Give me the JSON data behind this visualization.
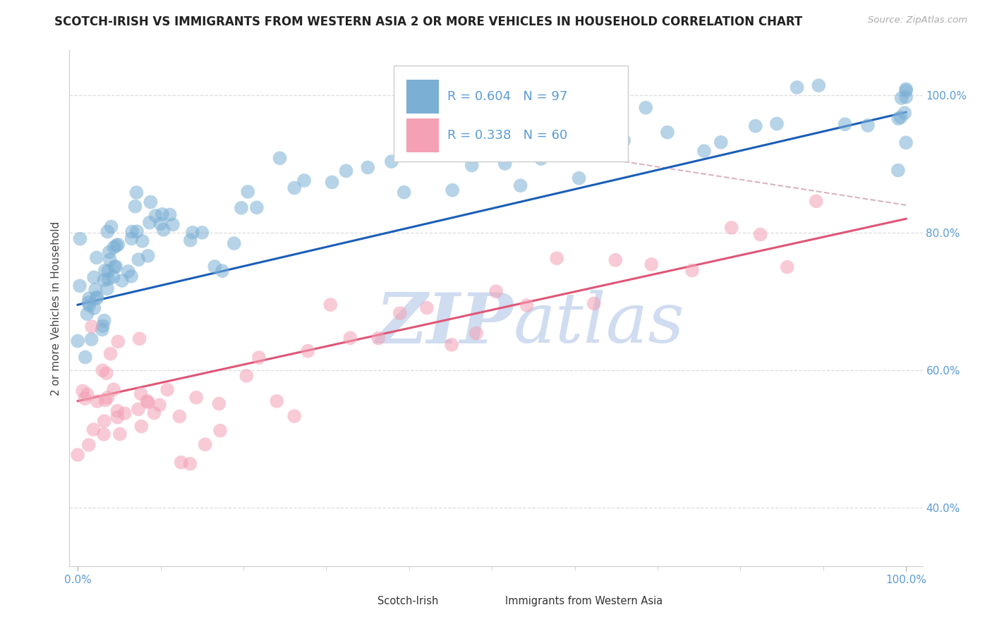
{
  "title": "SCOTCH-IRISH VS IMMIGRANTS FROM WESTERN ASIA 2 OR MORE VEHICLES IN HOUSEHOLD CORRELATION CHART",
  "source_text": "Source: ZipAtlas.com",
  "ylabel": "2 or more Vehicles in Household",
  "R_blue": 0.604,
  "N_blue": 97,
  "R_pink": 0.338,
  "N_pink": 60,
  "blue_color": "#7BAFD4",
  "pink_color": "#F4A0B5",
  "blue_line_color": "#1A5EB8",
  "pink_line_color": "#E05577",
  "dashed_line_color": "#E8A0B0",
  "grid_color": "#DDDDDD",
  "tick_color": "#5B9BD5",
  "legend_blue_label": "Scotch-Irish",
  "legend_pink_label": "Immigrants from Western Asia",
  "watermark_color": "#D0DCF0",
  "blue_line_y0": 0.695,
  "blue_line_y1": 0.975,
  "pink_line_y0": 0.555,
  "pink_line_y1": 0.82,
  "dashed_line_y0": 0.975,
  "dashed_line_y1": 0.84,
  "xlim": [
    -0.01,
    1.02
  ],
  "ylim": [
    0.315,
    1.065
  ],
  "yticks": [
    0.4,
    0.6,
    0.8,
    1.0
  ],
  "ytick_labels": [
    "40.0%",
    "60.0%",
    "80.0%",
    "100.0%"
  ],
  "blue_x": [
    0.005,
    0.008,
    0.01,
    0.01,
    0.012,
    0.013,
    0.015,
    0.016,
    0.017,
    0.018,
    0.02,
    0.02,
    0.022,
    0.023,
    0.025,
    0.025,
    0.026,
    0.028,
    0.028,
    0.03,
    0.032,
    0.033,
    0.035,
    0.037,
    0.038,
    0.04,
    0.042,
    0.043,
    0.045,
    0.048,
    0.05,
    0.052,
    0.055,
    0.057,
    0.06,
    0.062,
    0.065,
    0.068,
    0.07,
    0.072,
    0.075,
    0.078,
    0.08,
    0.082,
    0.085,
    0.088,
    0.09,
    0.092,
    0.095,
    0.1,
    0.11,
    0.12,
    0.13,
    0.14,
    0.15,
    0.16,
    0.17,
    0.18,
    0.19,
    0.2,
    0.22,
    0.24,
    0.26,
    0.28,
    0.3,
    0.32,
    0.35,
    0.38,
    0.4,
    0.42,
    0.45,
    0.48,
    0.51,
    0.54,
    0.57,
    0.6,
    0.63,
    0.66,
    0.69,
    0.72,
    0.75,
    0.78,
    0.81,
    0.84,
    0.87,
    0.9,
    0.93,
    0.96,
    0.98,
    0.99,
    0.995,
    1.0,
    1.0,
    1.0,
    1.0,
    1.0,
    1.0
  ],
  "blue_y": [
    0.69,
    0.685,
    0.695,
    0.7,
    0.688,
    0.692,
    0.7,
    0.695,
    0.705,
    0.698,
    0.71,
    0.72,
    0.715,
    0.705,
    0.72,
    0.73,
    0.715,
    0.725,
    0.735,
    0.72,
    0.73,
    0.74,
    0.735,
    0.745,
    0.75,
    0.74,
    0.755,
    0.745,
    0.76,
    0.75,
    0.765,
    0.755,
    0.77,
    0.765,
    0.775,
    0.77,
    0.78,
    0.775,
    0.79,
    0.78,
    0.795,
    0.785,
    0.8,
    0.795,
    0.81,
    0.8,
    0.815,
    0.805,
    0.82,
    0.81,
    0.75,
    0.82,
    0.795,
    0.78,
    0.79,
    0.8,
    0.81,
    0.82,
    0.83,
    0.84,
    0.855,
    0.86,
    0.87,
    0.875,
    0.88,
    0.885,
    0.87,
    0.88,
    0.89,
    0.885,
    0.9,
    0.895,
    0.91,
    0.905,
    0.91,
    0.905,
    0.915,
    0.92,
    0.93,
    0.935,
    0.94,
    0.945,
    0.95,
    0.955,
    0.96,
    0.965,
    0.97,
    0.975,
    0.98,
    0.985,
    0.965,
    0.98,
    0.995,
    1.0,
    0.975,
    0.99,
    1.0
  ],
  "pink_x": [
    0.005,
    0.008,
    0.01,
    0.012,
    0.015,
    0.018,
    0.02,
    0.022,
    0.025,
    0.028,
    0.03,
    0.033,
    0.035,
    0.038,
    0.04,
    0.042,
    0.045,
    0.048,
    0.05,
    0.055,
    0.06,
    0.065,
    0.07,
    0.075,
    0.08,
    0.085,
    0.09,
    0.095,
    0.1,
    0.11,
    0.12,
    0.13,
    0.14,
    0.15,
    0.16,
    0.17,
    0.18,
    0.2,
    0.22,
    0.24,
    0.26,
    0.28,
    0.3,
    0.33,
    0.36,
    0.39,
    0.42,
    0.45,
    0.48,
    0.51,
    0.54,
    0.58,
    0.62,
    0.66,
    0.7,
    0.74,
    0.78,
    0.82,
    0.86,
    0.9
  ],
  "pink_y": [
    0.54,
    0.48,
    0.535,
    0.56,
    0.49,
    0.545,
    0.555,
    0.52,
    0.565,
    0.53,
    0.56,
    0.54,
    0.57,
    0.545,
    0.575,
    0.555,
    0.58,
    0.56,
    0.585,
    0.565,
    0.59,
    0.57,
    0.595,
    0.575,
    0.6,
    0.58,
    0.605,
    0.585,
    0.61,
    0.59,
    0.48,
    0.56,
    0.53,
    0.51,
    0.545,
    0.54,
    0.555,
    0.565,
    0.58,
    0.59,
    0.61,
    0.6,
    0.62,
    0.63,
    0.64,
    0.65,
    0.66,
    0.67,
    0.68,
    0.69,
    0.7,
    0.71,
    0.725,
    0.73,
    0.74,
    0.75,
    0.76,
    0.77,
    0.79,
    0.82
  ],
  "title_fontsize": 12,
  "axis_label_fontsize": 11,
  "tick_fontsize": 11,
  "legend_fontsize": 13
}
